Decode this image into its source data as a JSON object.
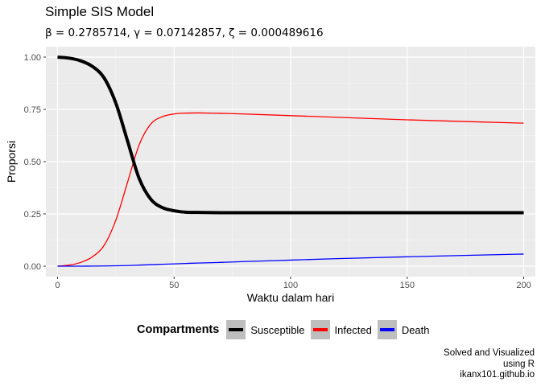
{
  "chart_data": {
    "type": "line",
    "title": "Simple SIS Model",
    "subtitle": "β = 0.2785714,  γ = 0.07142857,  ζ = 0.000489616",
    "xlabel": "Waktu dalam hari",
    "ylabel": "Proporsi",
    "xlim": [
      -5,
      205
    ],
    "ylim": [
      -0.05,
      1.05
    ],
    "x_ticks": [
      0,
      50,
      100,
      150,
      200
    ],
    "x_tick_labels": [
      "0",
      "50",
      "100",
      "150",
      "200"
    ],
    "y_ticks": [
      0,
      0.25,
      0.5,
      0.75,
      1
    ],
    "y_tick_labels": [
      "0.00",
      "0.25",
      "0.50",
      "0.75",
      "1.00"
    ],
    "grid": true,
    "legend_position": "bottom",
    "legend_title": "Compartments",
    "x": [
      0,
      5,
      10,
      15,
      20,
      25,
      30,
      35,
      40,
      45,
      50,
      55,
      60,
      70,
      80,
      100,
      120,
      150,
      200
    ],
    "series": [
      {
        "name": "Susceptible",
        "color": "#000000",
        "width": 4,
        "values": [
          1.0,
          0.995,
          0.982,
          0.955,
          0.9,
          0.78,
          0.6,
          0.42,
          0.32,
          0.28,
          0.265,
          0.258,
          0.257,
          0.256,
          0.256,
          0.256,
          0.256,
          0.256,
          0.256
        ]
      },
      {
        "name": "Infected",
        "color": "#ff0000",
        "width": 1.3,
        "values": [
          0.0,
          0.005,
          0.018,
          0.045,
          0.1,
          0.22,
          0.4,
          0.58,
          0.68,
          0.715,
          0.728,
          0.732,
          0.733,
          0.731,
          0.728,
          0.72,
          0.712,
          0.7,
          0.684
        ]
      },
      {
        "name": "Death",
        "color": "#0000ff",
        "width": 1.3,
        "values": [
          0.0,
          0.0,
          0.0,
          0.0005,
          0.001,
          0.002,
          0.003,
          0.005,
          0.007,
          0.009,
          0.011,
          0.013,
          0.015,
          0.018,
          0.022,
          0.029,
          0.036,
          0.045,
          0.058
        ]
      }
    ]
  },
  "caption": {
    "line1": "Solved and Visualized",
    "line2": "using R",
    "line3": "ikanx101.github.io"
  }
}
